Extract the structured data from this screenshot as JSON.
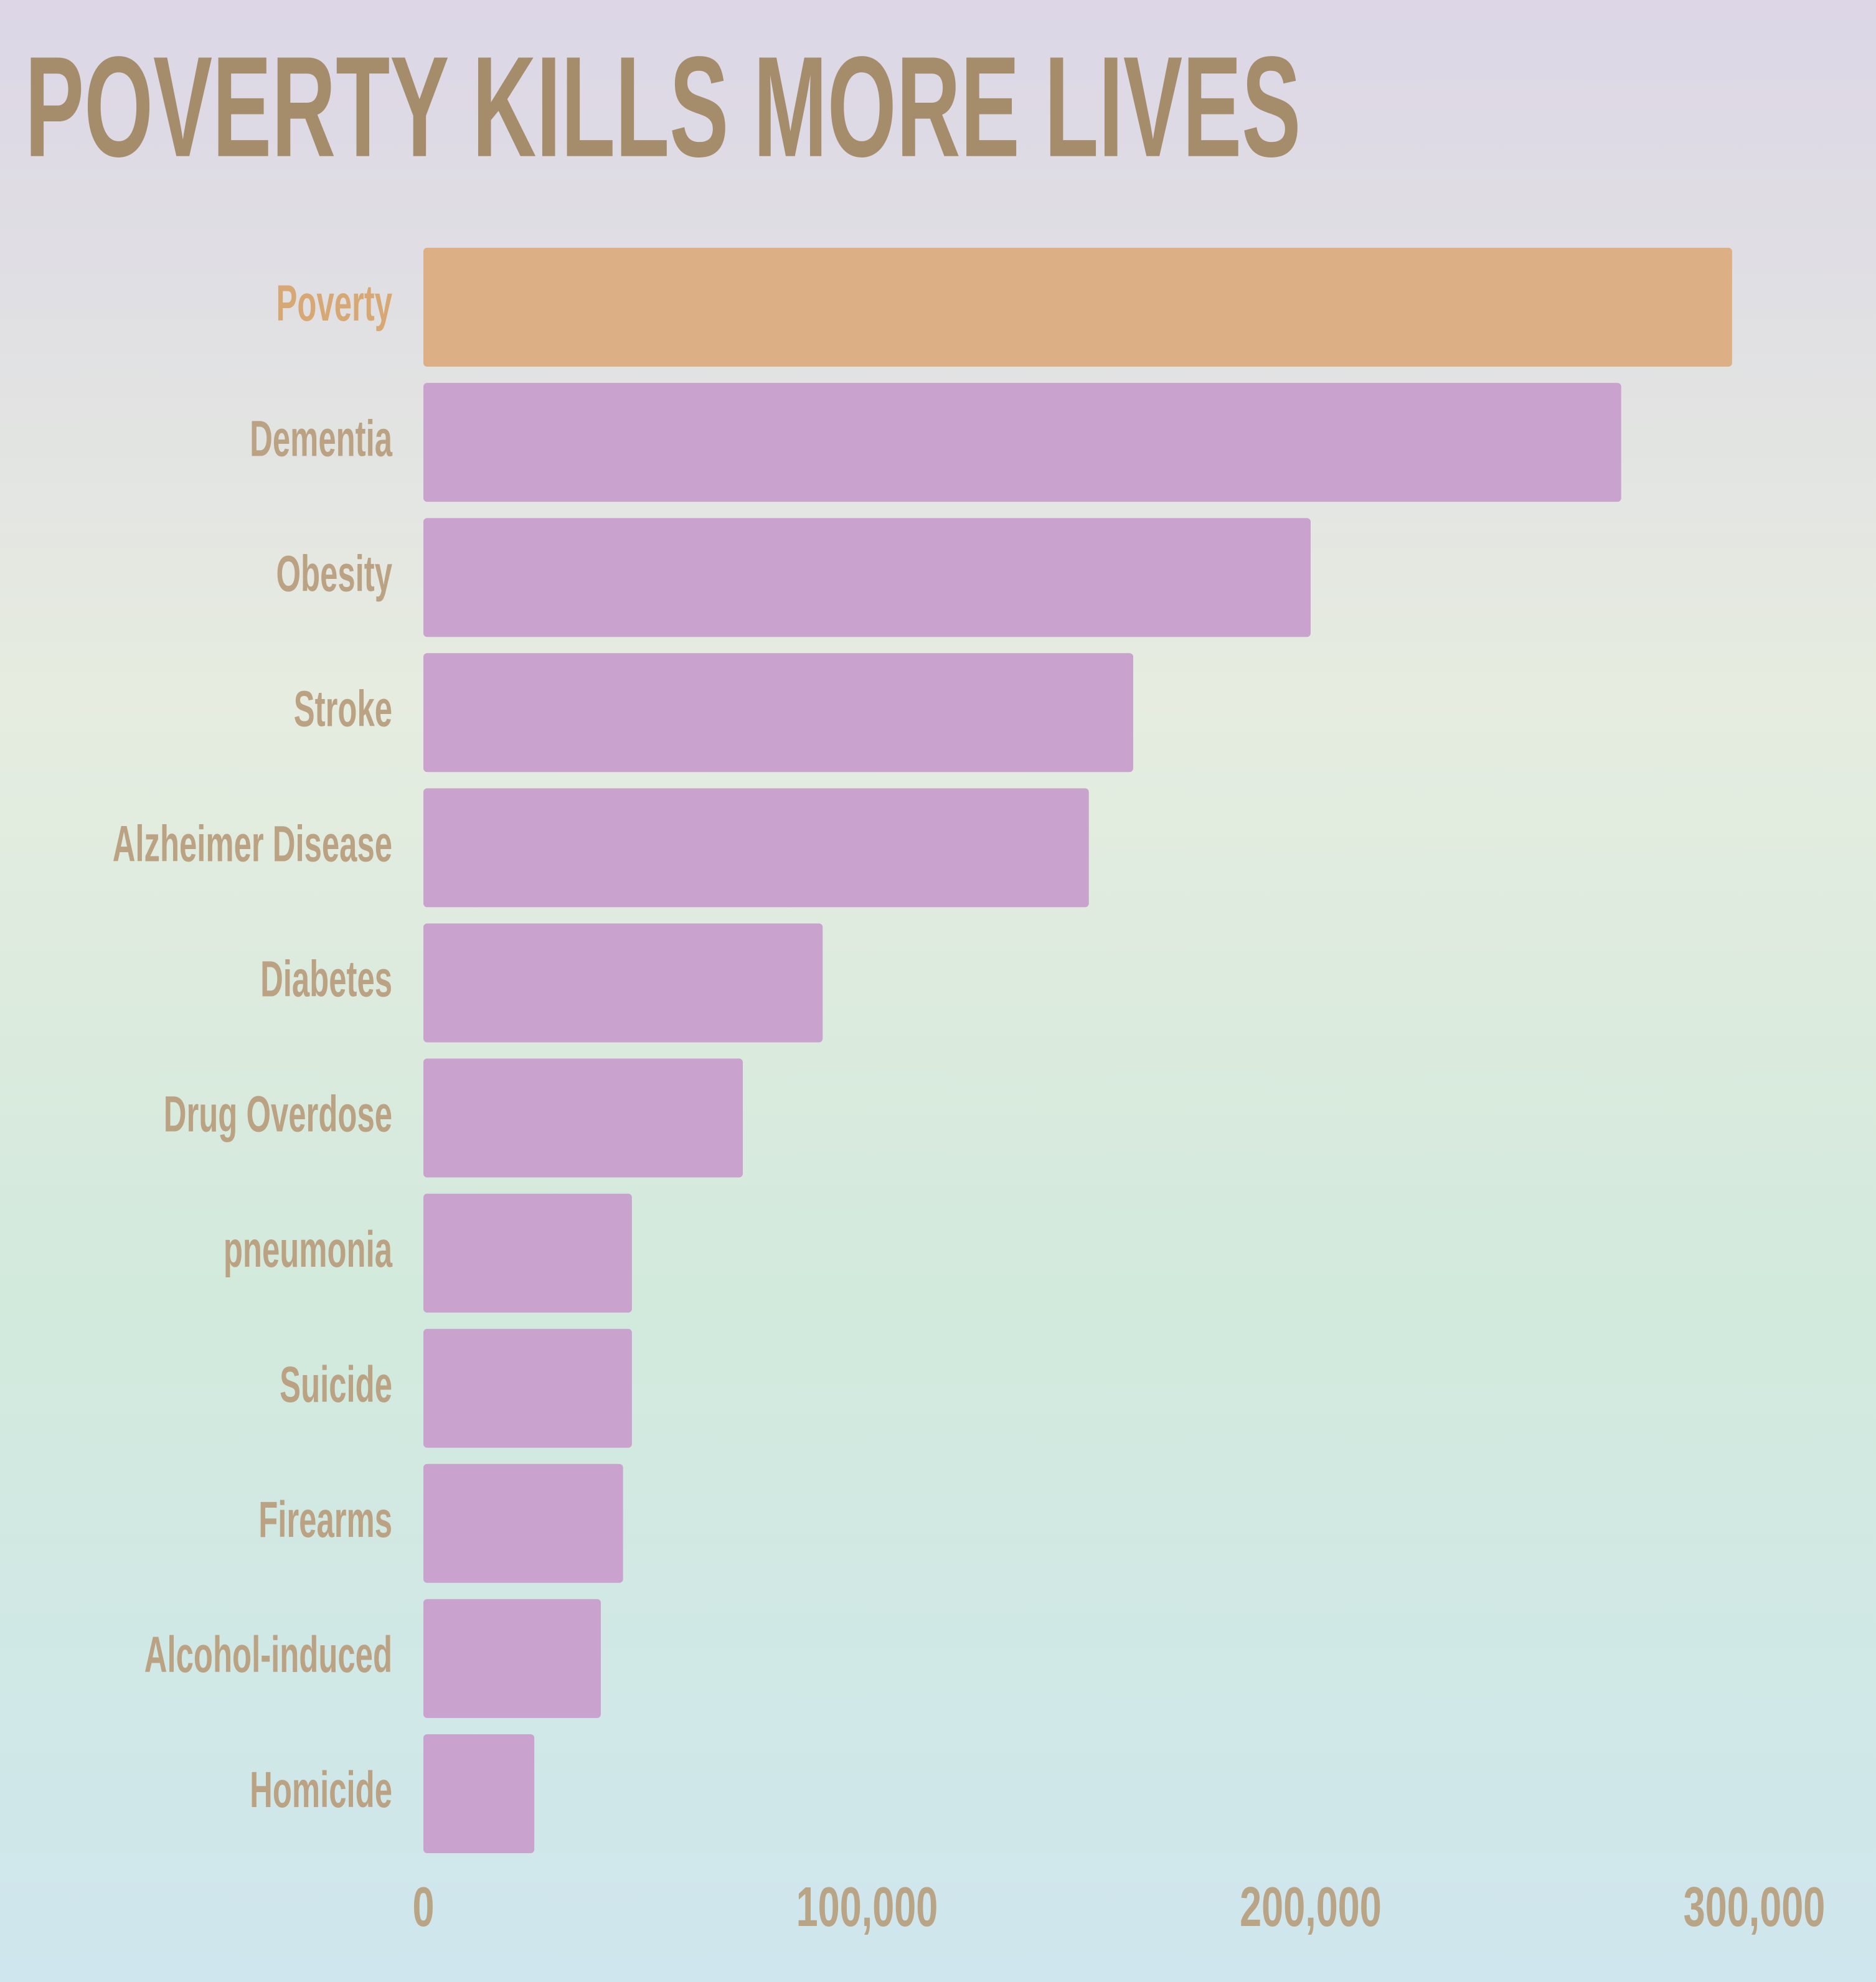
{
  "chart_data": {
    "type": "hbar",
    "title": "POVERTY KILLS MORE LIVES",
    "categories": [
      "Poverty",
      "Dementia",
      "Obesity",
      "Stroke",
      "Alzheimer Disease",
      "Diabetes",
      "Drug Overdose",
      "pneumonia",
      "Suicide",
      "Firearms",
      "Alcohol-induced",
      "Homicide"
    ],
    "values": [
      295000,
      270000,
      200000,
      160000,
      150000,
      90000,
      72000,
      47000,
      47000,
      45000,
      40000,
      25000
    ],
    "colors": [
      "#dcaf84",
      "#c9a2cd",
      "#c9a2cd",
      "#c9a2cd",
      "#c9a2cd",
      "#c9a2cd",
      "#c9a2cd",
      "#c9a2cd",
      "#c9a2cd",
      "#c9a2cd",
      "#c9a2cd",
      "#c9a2cd"
    ],
    "xlim": [
      0,
      320000
    ],
    "xticks": [
      0,
      {
        "value": 100000,
        "label": "100,000"
      },
      {
        "value": 200000,
        "label": "200,000"
      },
      {
        "value": 300000,
        "label": "300,000"
      }
    ]
  }
}
